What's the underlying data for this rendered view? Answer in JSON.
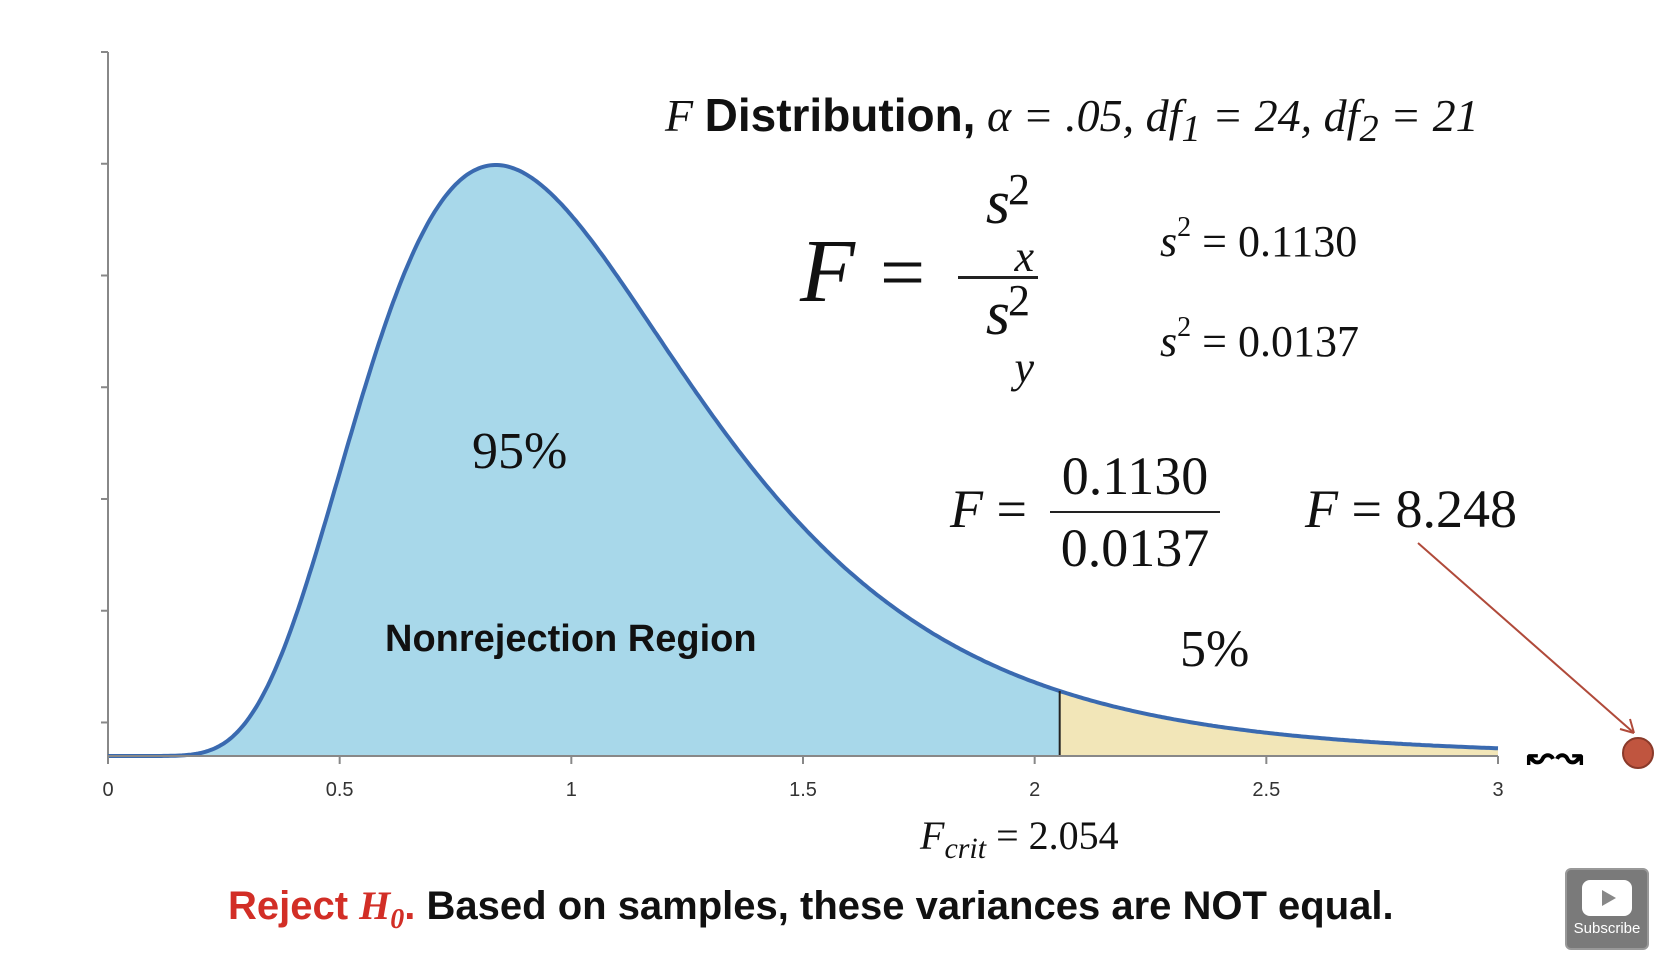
{
  "title": {
    "f": "F",
    "word": "Distribution,",
    "rest": "α = .05, df",
    "df1_sub": "1",
    "mid": " = 24, df",
    "df2_sub": "2",
    "end": " = 21"
  },
  "formula": {
    "f": "F",
    "eq": "=",
    "num_base": "s",
    "num_sup": "2",
    "num_sub": "x",
    "den_base": "s",
    "den_sup": "2",
    "den_sub": "y"
  },
  "variances": [
    {
      "base": "s",
      "sup": "2",
      "value": " = 0.1130"
    },
    {
      "base": "s",
      "sup": "2",
      "value": " = 0.0137"
    }
  ],
  "calc": {
    "f": "F",
    "eq": " =",
    "numerator": "0.1130",
    "denominator": "0.0137",
    "result_f": "F",
    "result_value": " = 8.248"
  },
  "labels": {
    "nonrejection_pct": "95%",
    "rejection_pct": "5%",
    "region": "Nonrejection Region"
  },
  "fcrit": {
    "f": "F",
    "sub": "crit",
    "value": " = 2.054"
  },
  "conclusion": {
    "reject": "Reject ",
    "h": "H",
    "h_sub": "0",
    "dot": ".",
    "text": " Based on samples, these variances are NOT equal."
  },
  "subscribe": {
    "label": "Subscribe"
  },
  "colors": {
    "nonrejection_fill": "#a8d8ea",
    "rejection_fill": "#f2e6b8",
    "curve": "#3a6ab0",
    "arrow": "#b04a3a",
    "point": "#c0553f",
    "red_text": "#d22e26"
  },
  "chart_data": {
    "type": "area",
    "distribution": "F",
    "alpha": 0.05,
    "df1": 24,
    "df2": 21,
    "xlim": [
      0,
      3
    ],
    "xticks": [
      "0",
      "0.5",
      "1",
      "1.5",
      "2",
      "2.5",
      "3"
    ],
    "xtick_values": [
      0,
      0.5,
      1,
      1.5,
      2,
      2.5,
      3
    ],
    "critical_value": 2.054,
    "test_statistic": 8.248,
    "axis_break_symbol": "↜↝",
    "yticks_count": 7,
    "grid": false
  }
}
